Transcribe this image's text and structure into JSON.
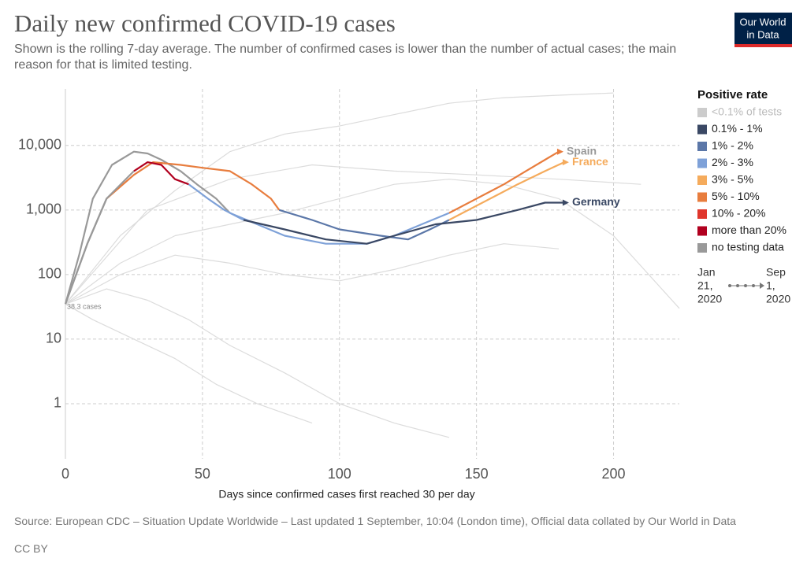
{
  "chart_data": {
    "type": "line",
    "title": "Daily new confirmed COVID-19 cases",
    "subtitle": "Shown is the rolling 7-day average. The number of confirmed cases is lower than the number of actual cases; the main reason for that is limited testing.",
    "x_label": "Days since confirmed cases first reached 30 per day",
    "source": "Source: European CDC – Situation Update Worldwide – Last updated 1 September, 10:04 (London time), Official data collated by Our World in Data",
    "license": "CC BY",
    "logo": [
      "Our World",
      "in Data"
    ],
    "annotation": "38.3 cases",
    "log_scale": true,
    "grid": true,
    "xlim": [
      0,
      224
    ],
    "xticks": [
      0,
      50,
      100,
      150,
      200
    ],
    "ylim": [
      0.14,
      75000
    ],
    "yticks": [
      1,
      10,
      100,
      {
        "value": 1000,
        "label": "1,000"
      },
      {
        "value": 10000,
        "label": "10,000"
      }
    ],
    "legend_title": "Positive rate",
    "legend": [
      {
        "label": "<0.1% of tests",
        "color": "#cccccc"
      },
      {
        "label": "0.1% - 1%",
        "color": "#3a4864"
      },
      {
        "label": "1% - 2%",
        "color": "#5b77a8"
      },
      {
        "label": "2% - 3%",
        "color": "#7ea1d8"
      },
      {
        "label": "3% - 5%",
        "color": "#f5ab5c"
      },
      {
        "label": "5% - 10%",
        "color": "#e87d3e"
      },
      {
        "label": "10% - 20%",
        "color": "#e0362c"
      },
      {
        "label": "more than 20%",
        "color": "#b1001f"
      },
      {
        "label": "no testing data",
        "color": "#999999"
      }
    ],
    "timeline_start": [
      "Jan",
      "21,",
      "2020"
    ],
    "timeline_end": [
      "Sep",
      "1,",
      "2020"
    ],
    "background_series": [
      {
        "color": "#dcdcdc",
        "x": [
          0,
          20,
          40,
          60,
          80,
          100,
          120,
          140,
          160,
          180,
          200
        ],
        "values": [
          35,
          400,
          2000,
          8000,
          15000,
          20000,
          30000,
          45000,
          55000,
          60000,
          65000
        ]
      },
      {
        "color": "#dcdcdc",
        "x": [
          0,
          20,
          40,
          60,
          80,
          100,
          120,
          140,
          160,
          180,
          200,
          224
        ],
        "values": [
          35,
          150,
          400,
          600,
          900,
          1500,
          2500,
          3000,
          2500,
          1500,
          400,
          30
        ]
      },
      {
        "color": "#dcdcdc",
        "x": [
          0,
          15,
          30,
          45,
          60,
          80,
          100,
          120,
          140
        ],
        "values": [
          35,
          60,
          40,
          20,
          8,
          3,
          1,
          0.5,
          0.3
        ]
      },
      {
        "color": "#dcdcdc",
        "x": [
          0,
          20,
          40,
          60,
          80,
          100,
          120,
          140,
          160,
          180
        ],
        "values": [
          35,
          100,
          200,
          150,
          100,
          80,
          120,
          200,
          300,
          250
        ]
      },
      {
        "color": "#dcdcdc",
        "x": [
          0,
          10,
          25,
          40,
          55,
          70,
          90
        ],
        "values": [
          35,
          20,
          10,
          5,
          2,
          1,
          0.5
        ]
      },
      {
        "color": "#dcdcdc",
        "x": [
          0,
          30,
          60,
          90,
          120,
          150,
          180,
          210
        ],
        "values": [
          35,
          1000,
          3000,
          5000,
          4000,
          3500,
          3000,
          2500
        ]
      }
    ],
    "series": [
      {
        "name": "Spain",
        "color": "#999999",
        "pieces": [
          {
            "color": "#999999",
            "x": [
              0,
              5,
              10,
              17,
              25,
              30,
              35,
              42,
              48,
              55,
              60
            ],
            "values": [
              35,
              200,
              1500,
              5000,
              8000,
              7500,
              6000,
              4000,
              2500,
              1500,
              900
            ]
          },
          {
            "color": "#7ea1d8",
            "x": [
              60,
              70,
              80,
              95,
              110,
              120,
              130,
              140
            ],
            "values": [
              900,
              600,
              400,
              300,
              300,
              400,
              600,
              900
            ]
          },
          {
            "color": "#e87d3e",
            "x": [
              140,
              150,
              160,
              168,
              175,
              180
            ],
            "values": [
              900,
              1500,
              2500,
              4000,
              6000,
              8000
            ]
          }
        ]
      },
      {
        "name": "France",
        "color": "#f5ab5c",
        "pieces": [
          {
            "color": "#999999",
            "x": [
              0,
              8,
              15
            ],
            "values": [
              35,
              300,
              1500
            ]
          },
          {
            "color": "#e87d3e",
            "x": [
              15,
              25,
              32,
              42,
              50,
              60,
              68,
              75,
              78
            ],
            "values": [
              1500,
              3500,
              5500,
              5000,
              4500,
              4000,
              2500,
              1500,
              1000
            ]
          },
          {
            "color": "#5b77a8",
            "x": [
              78,
              90,
              100,
              115,
              125,
              133,
              140
            ],
            "values": [
              1000,
              700,
              500,
              400,
              350,
              500,
              700
            ]
          },
          {
            "color": "#f5ab5c",
            "x": [
              140,
              155,
              165,
              175,
              182
            ],
            "values": [
              700,
              1500,
              2500,
              4000,
              5500
            ]
          }
        ]
      },
      {
        "name": "Germany",
        "color": "#3a4864",
        "pieces": [
          {
            "color": "#999999",
            "x": [
              0,
              8,
              15,
              25
            ],
            "values": [
              35,
              300,
              1500,
              4000
            ]
          },
          {
            "color": "#b1001f",
            "x": [
              25,
              30,
              35,
              40,
              45
            ],
            "values": [
              4000,
              5500,
              5000,
              3000,
              2500
            ]
          },
          {
            "color": "#7ea1d8",
            "x": [
              45,
              52,
              58,
              65
            ],
            "values": [
              2500,
              1500,
              1000,
              700
            ]
          },
          {
            "color": "#3a4864",
            "x": [
              65,
              80,
              95,
              110,
              120,
              135,
              150,
              165,
              175,
              182
            ],
            "values": [
              700,
              500,
              350,
              300,
              400,
              600,
              700,
              1000,
              1300,
              1300
            ]
          }
        ]
      }
    ]
  }
}
